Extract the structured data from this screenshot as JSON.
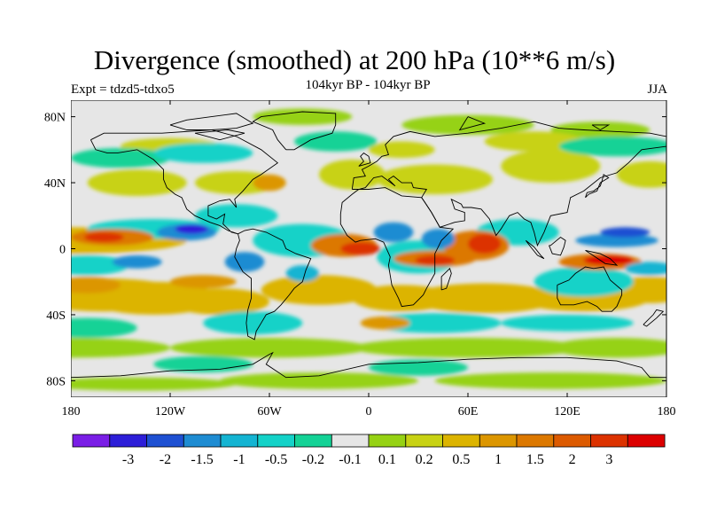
{
  "title": "Divergence (smoothed) at 200 hPa (10**6 m/s)",
  "experiment": "Expt = tdzd5-tdxo5",
  "subtitle": "104kyr BP - 104kyr BP",
  "season": "JJA",
  "map": {
    "projection": "cylindrical equidistant",
    "lon_range": [
      -180,
      180
    ],
    "lat_range": [
      -90,
      90
    ],
    "background_color": "#e6e6e6",
    "coastline_color": "#000000",
    "lat_ticks": [
      {
        "value": 80,
        "label": "80N"
      },
      {
        "value": 40,
        "label": "40N"
      },
      {
        "value": 0,
        "label": "0"
      },
      {
        "value": -40,
        "label": "40S"
      },
      {
        "value": -80,
        "label": "80S"
      }
    ],
    "lon_ticks": [
      {
        "value": -180,
        "label": "180"
      },
      {
        "value": -120,
        "label": "120W"
      },
      {
        "value": -60,
        "label": "60W"
      },
      {
        "value": 0,
        "label": "0"
      },
      {
        "value": 60,
        "label": "60E"
      },
      {
        "value": 120,
        "label": "120E"
      },
      {
        "value": 180,
        "label": "180"
      }
    ]
  },
  "colorbar": {
    "colors": [
      "#7a1ee6",
      "#2d1ed8",
      "#1e50d2",
      "#1e8cd2",
      "#14b4d2",
      "#14d2c8",
      "#14d296",
      "#e6e6e6",
      "#96d214",
      "#c8d214",
      "#dcb400",
      "#dc9600",
      "#dc7800",
      "#dc5a00",
      "#dc3200",
      "#dc0000"
    ],
    "labels": [
      "-3",
      "-2",
      "-1.5",
      "-1",
      "-0.5",
      "-0.2",
      "-0.1",
      "0.1",
      "0.2",
      "0.5",
      "1",
      "1.5",
      "2",
      "3"
    ]
  }
}
